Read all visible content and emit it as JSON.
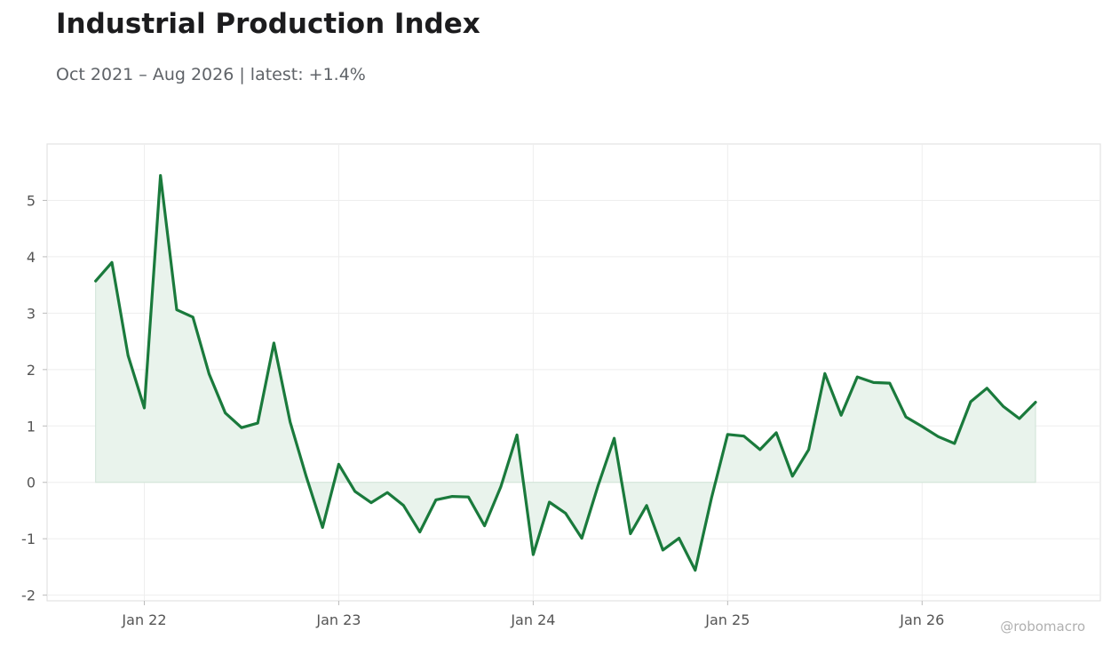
{
  "header": {
    "title": "Industrial Production Index",
    "subtitle": "Oct 2021 – Aug 2026 | latest: +1.4%"
  },
  "watermark": "@robomacro",
  "colors": {
    "line": "#1a7a3c",
    "fill": "#e9f3ec",
    "grid": "#eeeeee",
    "frame": "#dddddd",
    "text": "#555555"
  },
  "chart_data": {
    "type": "area",
    "title": "Industrial Production Index",
    "subtitle": "Oct 2021 – Aug 2026 | latest: +1.4%",
    "xlabel": "",
    "ylabel": "",
    "x": [
      "2021-10",
      "2021-11",
      "2021-12",
      "2022-01",
      "2022-02",
      "2022-03",
      "2022-04",
      "2022-05",
      "2022-06",
      "2022-07",
      "2022-08",
      "2022-09",
      "2022-10",
      "2022-11",
      "2022-12",
      "2023-01",
      "2023-02",
      "2023-03",
      "2023-04",
      "2023-05",
      "2023-06",
      "2023-07",
      "2023-08",
      "2023-09",
      "2023-10",
      "2023-11",
      "2023-12",
      "2024-01",
      "2024-02",
      "2024-03",
      "2024-04",
      "2024-05",
      "2024-06",
      "2024-07",
      "2024-08",
      "2024-09",
      "2024-10",
      "2024-11",
      "2024-12",
      "2025-01",
      "2025-02",
      "2025-03",
      "2025-04",
      "2025-05",
      "2025-06",
      "2025-07",
      "2025-08",
      "2025-09",
      "2025-10",
      "2025-11",
      "2025-12",
      "2026-01",
      "2026-02",
      "2026-03",
      "2026-04",
      "2026-05",
      "2026-06",
      "2026-07",
      "2026-08"
    ],
    "series": [
      {
        "values": [
          3.57,
          3.9,
          2.25,
          1.32,
          5.44,
          3.06,
          2.93,
          1.92,
          1.23,
          0.97,
          1.05,
          2.47,
          1.07,
          0.1,
          -0.8,
          0.32,
          -0.16,
          -0.36,
          -0.18,
          -0.41,
          -0.88,
          -0.31,
          -0.25,
          -0.26,
          -0.77,
          -0.08,
          0.84,
          -1.28,
          -0.35,
          -0.55,
          -0.99,
          -0.06,
          0.78,
          -0.91,
          -0.41,
          -1.2,
          -0.99,
          -1.56,
          -0.28,
          0.85,
          0.82,
          0.58,
          0.88,
          0.11,
          0.58,
          1.93,
          1.19,
          1.87,
          1.77,
          1.76,
          1.16,
          0.99,
          0.81,
          0.69,
          1.43,
          1.67,
          1.35,
          1.13,
          1.42
        ]
      }
    ],
    "xticks": [
      {
        "date": "2022-01",
        "label": "Jan 22"
      },
      {
        "date": "2023-01",
        "label": "Jan 23"
      },
      {
        "date": "2024-01",
        "label": "Jan 24"
      },
      {
        "date": "2025-01",
        "label": "Jan 25"
      },
      {
        "date": "2026-01",
        "label": "Jan 26"
      }
    ],
    "yticks": [
      -2,
      -1,
      0,
      1,
      2,
      3,
      4,
      5
    ],
    "ylim": [
      -2.1,
      6.0
    ],
    "xlim": [
      "2021-07",
      "2026-12"
    ],
    "grid": true,
    "legend": "none"
  }
}
